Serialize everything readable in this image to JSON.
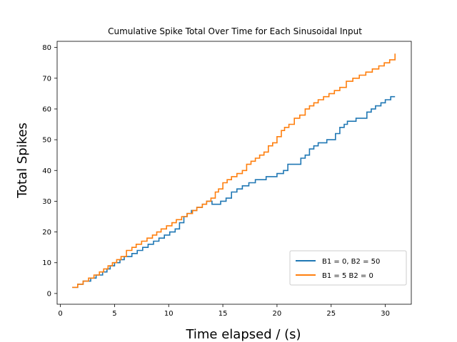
{
  "chart_data": {
    "type": "line",
    "title": "Cumulative Spike Total Over Time for Each Sinusoidal Input",
    "xlabel": "Time elapsed / (s)",
    "ylabel": "Total Spikes",
    "xlim": [
      -0.3,
      32.4
    ],
    "ylim": [
      -3.5,
      82
    ],
    "xticks": [
      0,
      5,
      10,
      15,
      20,
      25,
      30
    ],
    "yticks": [
      0,
      10,
      20,
      30,
      40,
      50,
      60,
      70,
      80
    ],
    "grid": false,
    "legend_position": "lower-right",
    "series": [
      {
        "name": "B1 = 0, B2 = 50",
        "color": "#1f77b4",
        "x": [
          1.1,
          1.6,
          2.1,
          2.8,
          3.3,
          3.9,
          4.3,
          4.6,
          5.0,
          5.5,
          5.9,
          6.6,
          7.1,
          7.6,
          8.1,
          8.6,
          9.1,
          9.6,
          10.1,
          10.6,
          11.0,
          11.4,
          11.7,
          12.1,
          12.6,
          13.1,
          13.5,
          14.0,
          14.4,
          14.8,
          15.3,
          15.8,
          16.3,
          16.8,
          17.4,
          18.0,
          19.0,
          20.0,
          20.6,
          21.0,
          22.2,
          22.6,
          23.0,
          23.4,
          23.8,
          24.6,
          25.4,
          25.8,
          26.2,
          26.5,
          26.9,
          27.3,
          28.3,
          28.7,
          29.1,
          29.6,
          30.0,
          30.5,
          30.9
        ],
        "y": [
          2,
          3,
          4,
          5,
          6,
          7,
          8,
          9,
          10,
          11,
          12,
          13,
          14,
          15,
          16,
          17,
          18,
          19,
          20,
          21,
          23,
          25,
          26,
          27,
          28,
          29,
          30,
          29,
          29,
          30,
          31,
          33,
          34,
          35,
          36,
          37,
          38,
          39,
          40,
          42,
          44,
          45,
          47,
          48,
          49,
          50,
          52,
          54,
          55,
          56,
          56,
          57,
          59,
          60,
          61,
          62,
          63,
          64,
          64
        ]
      },
      {
        "name": "B1 = 5  B2 = 0",
        "color": "#ff7f0e",
        "x": [
          1.1,
          1.6,
          2.1,
          2.6,
          3.1,
          3.6,
          4.0,
          4.4,
          4.8,
          5.2,
          5.6,
          6.1,
          6.6,
          7.0,
          7.5,
          8.0,
          8.5,
          8.9,
          9.3,
          9.8,
          10.3,
          10.7,
          11.2,
          11.7,
          12.2,
          12.6,
          13.1,
          13.5,
          13.9,
          14.3,
          14.6,
          15.0,
          15.4,
          15.8,
          16.3,
          16.8,
          17.2,
          17.6,
          18.0,
          18.4,
          18.8,
          19.2,
          19.6,
          20.0,
          20.4,
          20.7,
          21.1,
          21.6,
          22.1,
          22.6,
          23.0,
          23.4,
          23.8,
          24.3,
          24.8,
          25.3,
          25.8,
          26.4,
          27.0,
          27.6,
          28.2,
          28.8,
          29.4,
          29.9,
          30.4,
          30.9
        ],
        "y": [
          2,
          3,
          4,
          5,
          6,
          7,
          8,
          9,
          10,
          11,
          12,
          14,
          15,
          16,
          17,
          18,
          19,
          20,
          21,
          22,
          23,
          24,
          25,
          26,
          27,
          28,
          29,
          30,
          31,
          33,
          34,
          36,
          37,
          38,
          39,
          40,
          42,
          43,
          44,
          45,
          46,
          48,
          49,
          51,
          53,
          54,
          55,
          57,
          58,
          60,
          61,
          62,
          63,
          64,
          65,
          66,
          67,
          69,
          70,
          71,
          72,
          73,
          74,
          75,
          76,
          78
        ]
      }
    ]
  }
}
